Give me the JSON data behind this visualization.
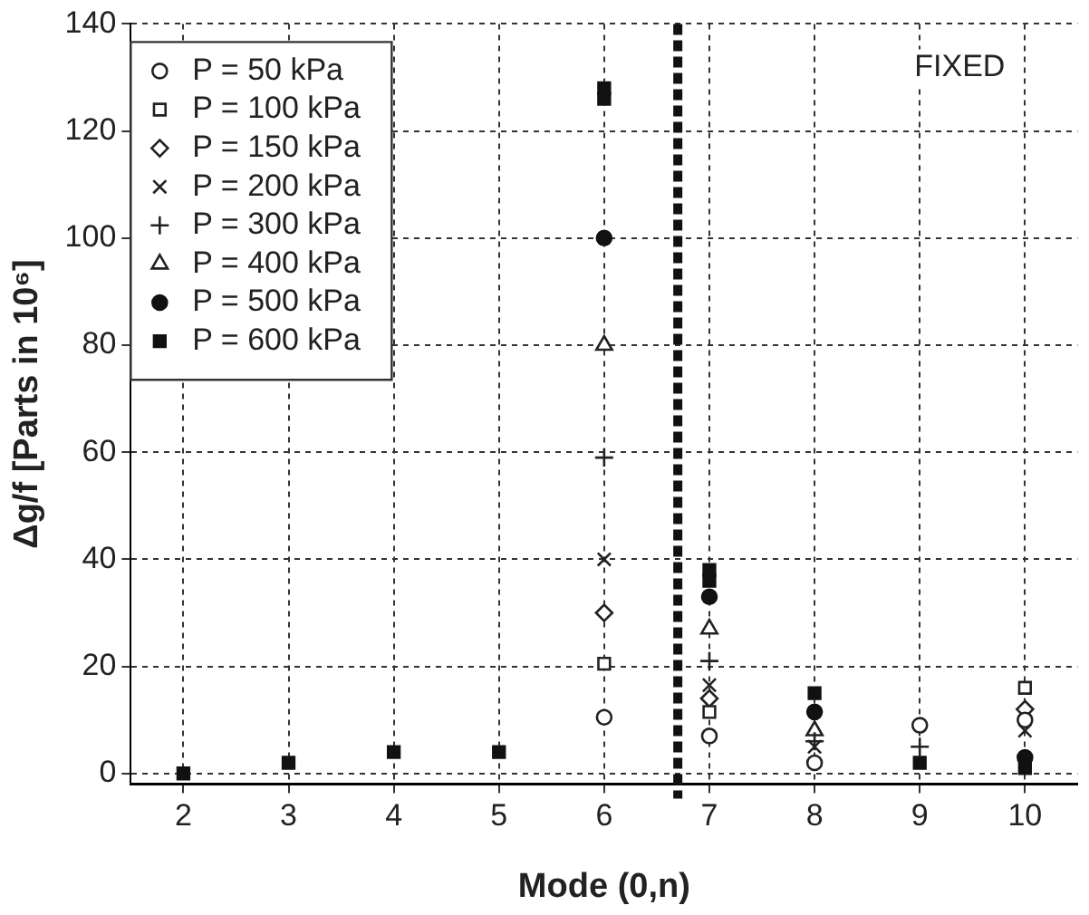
{
  "chart_data": {
    "type": "scatter",
    "xlabel": "Mode (0,n)",
    "ylabel": "Δg/f [Parts in 10⁶]",
    "xlim": [
      1.5,
      10.5
    ],
    "xticks": [
      2,
      3,
      4,
      5,
      6,
      7,
      8,
      9,
      10
    ],
    "ylim": [
      -2,
      140
    ],
    "yticks": [
      0,
      20,
      40,
      60,
      80,
      100,
      120,
      140
    ],
    "grid": true,
    "legend": "top left",
    "annotations": [
      "FIXED"
    ],
    "ref_lines": [
      {
        "axis": "x",
        "value": 6.7,
        "label": null,
        "color": "#111111",
        "line_style": "dashed"
      }
    ],
    "series": [
      {
        "name": "P = 50 kPa",
        "color": "#222222",
        "marker": "circle",
        "x": [
          6,
          7,
          8,
          9,
          10
        ],
        "values": [
          10.5,
          7,
          2,
          9,
          10
        ]
      },
      {
        "name": "P = 100 kPa",
        "color": "#222222",
        "marker": "square",
        "x": [
          6,
          7,
          8,
          10
        ],
        "values": [
          20.5,
          11.5,
          null,
          16
        ]
      },
      {
        "name": "P = 150 kPa",
        "color": "#222222",
        "marker": "diamond",
        "x": [
          6,
          7,
          10
        ],
        "values": [
          30,
          14,
          12
        ]
      },
      {
        "name": "P = 200 kPa",
        "color": "#222222",
        "marker": "cross",
        "x": [
          6,
          7,
          8,
          10
        ],
        "values": [
          40,
          16.5,
          5,
          8
        ]
      },
      {
        "name": "P = 300 kPa",
        "color": "#222222",
        "marker": "plus",
        "x": [
          6,
          7,
          8,
          9
        ],
        "values": [
          59,
          21,
          6,
          5
        ]
      },
      {
        "name": "P = 400 kPa",
        "color": "#222222",
        "marker": "triangle",
        "x": [
          6,
          7,
          8
        ],
        "values": [
          80,
          27,
          8
        ]
      },
      {
        "name": "P = 500 kPa",
        "color": "#111111",
        "marker": "circle",
        "x": [
          6,
          7,
          8,
          10
        ],
        "values": [
          100,
          33,
          11.5,
          3
        ]
      },
      {
        "name": "P = 600 kPa",
        "color": "#111111",
        "marker": "square",
        "x": [
          2,
          3,
          4,
          5,
          6,
          6,
          7,
          7,
          8,
          9,
          10
        ],
        "values": [
          0,
          2,
          4,
          4,
          128,
          126,
          38,
          36,
          15,
          2,
          1
        ]
      }
    ]
  }
}
